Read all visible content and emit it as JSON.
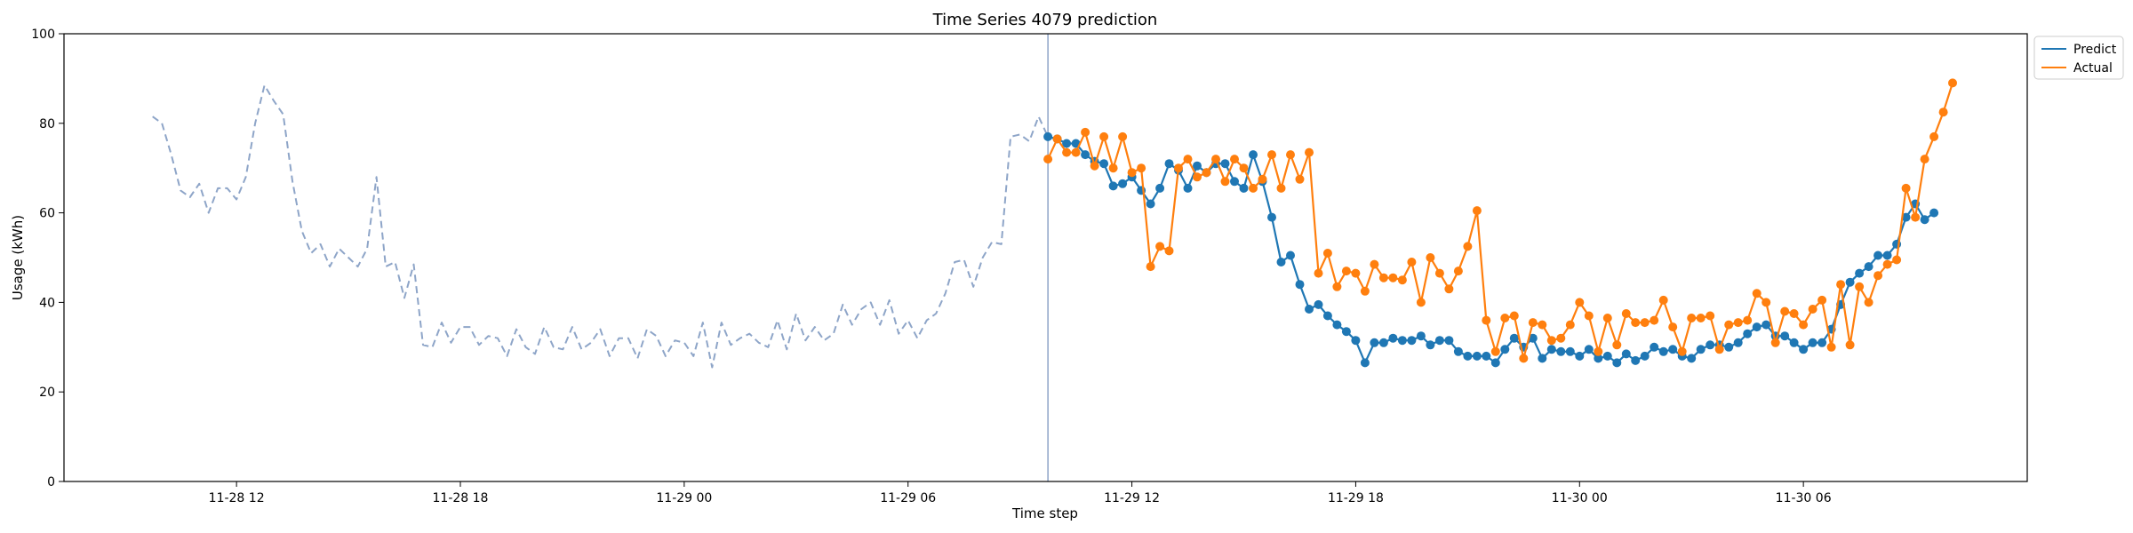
{
  "chart_data": {
    "type": "line",
    "title": "Time Series 4079 prediction",
    "xlabel": "Time step",
    "ylabel": "Usage (kWh)",
    "ylim": [
      0,
      100
    ],
    "xlim": [
      -9.5,
      201
    ],
    "y_ticks": [
      0,
      20,
      40,
      60,
      80,
      100
    ],
    "x_ticks": [
      {
        "label": "11-28 12",
        "step": 9
      },
      {
        "label": "11-28 18",
        "step": 33
      },
      {
        "label": "11-29 00",
        "step": 57
      },
      {
        "label": "11-29 06",
        "step": 81
      },
      {
        "label": "11-29 12",
        "step": 105
      },
      {
        "label": "11-29 18",
        "step": 129
      },
      {
        "label": "11-30 00",
        "step": 153
      },
      {
        "label": "11-30 06",
        "step": 177
      }
    ],
    "forecast_start_step": 96,
    "legend": {
      "position": "top-right",
      "entries": [
        "Predict",
        "Actual"
      ]
    },
    "colors": {
      "history": "#8ea5c8",
      "predict": "#1f77b4",
      "actual": "#ff7f0e",
      "divider": "#8ea5c8"
    },
    "series": [
      {
        "name": "History",
        "style": "dashed",
        "start_step": 0,
        "values": [
          81.5,
          80,
          73,
          65,
          63.5,
          66.5,
          60,
          65.5,
          65.5,
          63,
          68,
          80,
          88.5,
          85,
          82,
          67,
          56,
          51,
          53,
          48,
          52,
          50,
          48,
          52,
          68,
          48,
          49,
          41,
          48.5,
          30.5,
          30,
          35.5,
          31,
          34.5,
          34.5,
          30.5,
          32.5,
          32,
          28,
          34,
          30,
          28.5,
          34.5,
          30,
          29.5,
          34.5,
          29.5,
          31,
          34,
          28,
          32,
          32,
          27.5,
          34,
          32.5,
          28,
          31.5,
          31,
          28,
          35.5,
          25.5,
          35.5,
          30.5,
          32,
          33,
          31,
          30,
          36,
          29.5,
          37.5,
          31.5,
          34.5,
          31.5,
          33,
          39.5,
          35,
          38.5,
          40,
          35,
          40.5,
          33,
          36,
          32,
          36,
          37.5,
          42,
          49,
          49.5,
          43.5,
          50,
          53.5,
          53,
          77,
          77.5,
          76,
          81.5,
          77
        ]
      },
      {
        "name": "Predict",
        "style": "solid-markers",
        "start_step": 96,
        "values": [
          77,
          76.5,
          75.5,
          75.5,
          73,
          71.5,
          71,
          66,
          66.5,
          68,
          65,
          62,
          65.5,
          71,
          69.5,
          65.5,
          70.5,
          69,
          71,
          71,
          67,
          65.5,
          73,
          67,
          59,
          49,
          50.5,
          44,
          38.5,
          39.5,
          37,
          35,
          33.5,
          31.5,
          26.5,
          31,
          31,
          32,
          31.5,
          31.5,
          32.5,
          30.5,
          31.5,
          31.5,
          29,
          28,
          28,
          28,
          26.5,
          29.5,
          32,
          30,
          32,
          27.5,
          29.5,
          29,
          29,
          28,
          29.5,
          27.5,
          28,
          26.5,
          28.5,
          27,
          28,
          30,
          29,
          29.5,
          28,
          27.5,
          29.5,
          30.5,
          30.5,
          30,
          31,
          33,
          34.5,
          35,
          32.5,
          32.5,
          31,
          29.5,
          31,
          31,
          34,
          39.5,
          44.5,
          46.5,
          48,
          50.5,
          50.5,
          53,
          59,
          62,
          58.5,
          60
        ]
      },
      {
        "name": "Actual",
        "style": "solid-markers",
        "start_step": 96,
        "values": [
          72,
          76.5,
          73.5,
          73.5,
          78,
          70.5,
          77,
          70,
          77,
          69,
          70,
          48,
          52.5,
          51.5,
          70,
          72,
          68,
          69,
          72,
          67,
          72,
          70,
          65.5,
          67.5,
          73,
          65.5,
          73,
          67.5,
          73.5,
          46.5,
          51,
          43.5,
          47,
          46.5,
          42.5,
          48.5,
          45.5,
          45.5,
          45,
          49,
          40,
          50,
          46.5,
          43,
          47,
          52.5,
          60.5,
          36,
          29,
          36.5,
          37,
          27.5,
          35.5,
          35,
          31.5,
          32,
          35,
          40,
          37,
          29,
          36.5,
          30.5,
          37.5,
          35.5,
          35.5,
          36,
          40.5,
          34.5,
          29,
          36.5,
          36.5,
          37,
          29.5,
          35,
          35.5,
          36,
          42,
          40,
          31,
          38,
          37.5,
          35,
          38.5,
          40.5,
          30,
          44,
          30.5,
          43.5,
          40,
          46,
          48.5,
          49.5,
          65.5,
          59,
          72,
          77,
          82.5,
          89
        ]
      }
    ]
  }
}
